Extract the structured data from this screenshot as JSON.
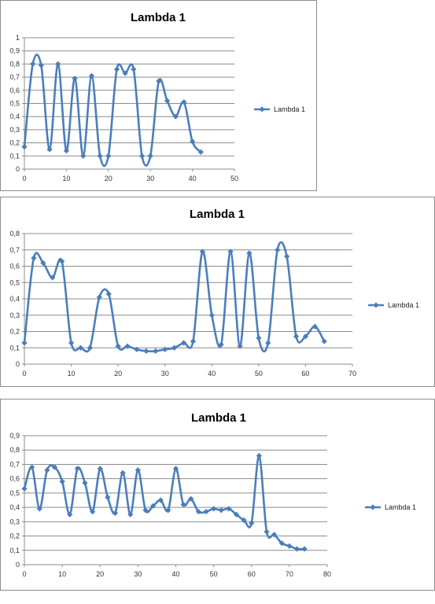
{
  "chart_data": [
    {
      "type": "scatter",
      "title": "Lambda 1",
      "legend": "right",
      "grid": true,
      "xlim": [
        0,
        50
      ],
      "xtick_step": 10,
      "ylim": [
        0,
        1
      ],
      "ytick_step": 0.1,
      "xticks": [
        "0",
        "10",
        "20",
        "30",
        "40",
        "50"
      ],
      "yticks": [
        "0",
        "0,1",
        "0,2",
        "0,3",
        "0,4",
        "0,5",
        "0,6",
        "0,7",
        "0,8",
        "0,9",
        "1"
      ],
      "series": [
        {
          "name": "Lambda 1",
          "color": "#4a7ebb",
          "x": [
            0,
            2,
            4,
            6,
            8,
            10,
            12,
            14,
            16,
            18,
            20,
            22,
            24,
            26,
            28,
            30,
            32,
            34,
            36,
            38,
            40,
            42
          ],
          "y": [
            0.17,
            0.8,
            0.79,
            0.15,
            0.8,
            0.14,
            0.69,
            0.1,
            0.71,
            0.1,
            0.1,
            0.76,
            0.73,
            0.76,
            0.1,
            0.1,
            0.67,
            0.52,
            0.4,
            0.51,
            0.21,
            0.13
          ]
        }
      ]
    },
    {
      "type": "scatter",
      "title": "Lambda 1",
      "legend": "right",
      "grid": true,
      "xlim": [
        0,
        70
      ],
      "xtick_step": 10,
      "ylim": [
        0,
        0.8
      ],
      "ytick_step": 0.1,
      "xticks": [
        "0",
        "10",
        "20",
        "30",
        "40",
        "50",
        "60",
        "70"
      ],
      "yticks": [
        "0",
        "0,1",
        "0,2",
        "0,3",
        "0,4",
        "0,5",
        "0,6",
        "0,7",
        "0,8"
      ],
      "series": [
        {
          "name": "Lambda 1",
          "color": "#4a7ebb",
          "x": [
            0,
            2,
            4,
            6,
            8,
            10,
            12,
            14,
            16,
            18,
            20,
            22,
            24,
            26,
            28,
            30,
            32,
            34,
            36,
            38,
            40,
            42,
            44,
            46,
            48,
            50,
            52,
            54,
            56,
            58,
            60,
            62,
            64
          ],
          "y": [
            0.13,
            0.65,
            0.62,
            0.53,
            0.63,
            0.13,
            0.1,
            0.1,
            0.41,
            0.43,
            0.11,
            0.11,
            0.09,
            0.08,
            0.08,
            0.09,
            0.1,
            0.13,
            0.14,
            0.69,
            0.3,
            0.12,
            0.69,
            0.11,
            0.68,
            0.16,
            0.13,
            0.7,
            0.66,
            0.17,
            0.17,
            0.23,
            0.14
          ]
        }
      ]
    },
    {
      "type": "scatter",
      "title": "Lambda 1",
      "legend": "right",
      "grid": true,
      "xlim": [
        0,
        80
      ],
      "xtick_step": 10,
      "ylim": [
        0,
        0.9
      ],
      "ytick_step": 0.1,
      "xticks": [
        "0",
        "10",
        "20",
        "30",
        "40",
        "50",
        "60",
        "70",
        "80"
      ],
      "yticks": [
        "0",
        "0,1",
        "0,2",
        "0,3",
        "0,4",
        "0,5",
        "0,6",
        "0,7",
        "0,8",
        "0,9"
      ],
      "series": [
        {
          "name": "Lambda 1",
          "color": "#4a7ebb",
          "x": [
            0,
            2,
            4,
            6,
            8,
            10,
            12,
            14,
            16,
            18,
            20,
            22,
            24,
            26,
            28,
            30,
            32,
            34,
            36,
            38,
            40,
            42,
            44,
            46,
            48,
            50,
            52,
            54,
            56,
            58,
            60,
            62,
            64,
            66,
            68,
            70,
            72,
            74
          ],
          "y": [
            0.53,
            0.68,
            0.39,
            0.66,
            0.68,
            0.58,
            0.35,
            0.67,
            0.57,
            0.37,
            0.67,
            0.47,
            0.36,
            0.64,
            0.35,
            0.66,
            0.38,
            0.41,
            0.45,
            0.38,
            0.67,
            0.42,
            0.46,
            0.37,
            0.37,
            0.39,
            0.38,
            0.39,
            0.35,
            0.31,
            0.29,
            0.76,
            0.23,
            0.21,
            0.15,
            0.13,
            0.11,
            0.11
          ]
        }
      ]
    }
  ]
}
